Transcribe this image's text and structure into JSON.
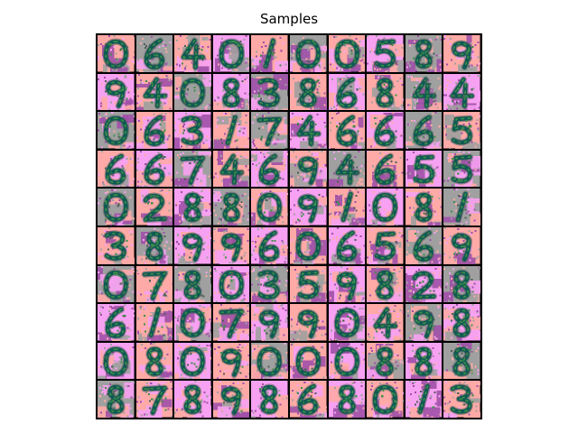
{
  "title": "Samples",
  "grid": {
    "rows": 10,
    "cols": 10
  },
  "palette": {
    "pink": "#ffaaa6",
    "gray": "#a0a0a0",
    "magenta": "#f7a1f2",
    "purple": "#a050a8",
    "ink": "#0e5a52",
    "inkLight": "#3f8f4a",
    "inkGray": "#4f5f58",
    "border": "#000000"
  },
  "samples": [
    {
      "digit": "0",
      "bg": "pink"
    },
    {
      "digit": "6",
      "bg": "gray"
    },
    {
      "digit": "4",
      "bg": "pink"
    },
    {
      "digit": "0",
      "bg": "magenta"
    },
    {
      "digit": "1",
      "bg": "pink"
    },
    {
      "digit": "0",
      "bg": "gray"
    },
    {
      "digit": "0",
      "bg": "pink"
    },
    {
      "digit": "5",
      "bg": "magenta"
    },
    {
      "digit": "8",
      "bg": "gray"
    },
    {
      "digit": "9",
      "bg": "pink"
    },
    {
      "digit": "9",
      "bg": "magenta"
    },
    {
      "digit": "4",
      "bg": "pink"
    },
    {
      "digit": "0",
      "bg": "gray"
    },
    {
      "digit": "8",
      "bg": "magenta"
    },
    {
      "digit": "3",
      "bg": "gray"
    },
    {
      "digit": "8",
      "bg": "pink"
    },
    {
      "digit": "6",
      "bg": "magenta"
    },
    {
      "digit": "8",
      "bg": "pink"
    },
    {
      "digit": "4",
      "bg": "gray"
    },
    {
      "digit": "4",
      "bg": "magenta"
    },
    {
      "digit": "0",
      "bg": "gray"
    },
    {
      "digit": "6",
      "bg": "pink"
    },
    {
      "digit": "3",
      "bg": "magenta"
    },
    {
      "digit": "1",
      "bg": "pink"
    },
    {
      "digit": "7",
      "bg": "gray"
    },
    {
      "digit": "4",
      "bg": "magenta"
    },
    {
      "digit": "6",
      "bg": "pink"
    },
    {
      "digit": "6",
      "bg": "magenta"
    },
    {
      "digit": "6",
      "bg": "gray"
    },
    {
      "digit": "5",
      "bg": "pink"
    },
    {
      "digit": "6",
      "bg": "pink"
    },
    {
      "digit": "6",
      "bg": "magenta"
    },
    {
      "digit": "7",
      "bg": "gray"
    },
    {
      "digit": "4",
      "bg": "pink"
    },
    {
      "digit": "6",
      "bg": "magenta"
    },
    {
      "digit": "9",
      "bg": "pink"
    },
    {
      "digit": "4",
      "bg": "gray"
    },
    {
      "digit": "6",
      "bg": "pink"
    },
    {
      "digit": "5",
      "bg": "magenta"
    },
    {
      "digit": "5",
      "bg": "gray"
    },
    {
      "digit": "0",
      "bg": "gray"
    },
    {
      "digit": "2",
      "bg": "pink"
    },
    {
      "digit": "8",
      "bg": "magenta"
    },
    {
      "digit": "8",
      "bg": "gray"
    },
    {
      "digit": "0",
      "bg": "pink"
    },
    {
      "digit": "9",
      "bg": "magenta"
    },
    {
      "digit": "1",
      "bg": "pink"
    },
    {
      "digit": "0",
      "bg": "magenta"
    },
    {
      "digit": "8",
      "bg": "pink"
    },
    {
      "digit": "1",
      "bg": "gray"
    },
    {
      "digit": "3",
      "bg": "pink"
    },
    {
      "digit": "8",
      "bg": "gray"
    },
    {
      "digit": "9",
      "bg": "magenta"
    },
    {
      "digit": "9",
      "bg": "pink"
    },
    {
      "digit": "6",
      "bg": "magenta"
    },
    {
      "digit": "0",
      "bg": "pink"
    },
    {
      "digit": "6",
      "bg": "magenta"
    },
    {
      "digit": "5",
      "bg": "pink"
    },
    {
      "digit": "6",
      "bg": "gray"
    },
    {
      "digit": "9",
      "bg": "pink"
    },
    {
      "digit": "0",
      "bg": "gray"
    },
    {
      "digit": "7",
      "bg": "pink"
    },
    {
      "digit": "8",
      "bg": "gray"
    },
    {
      "digit": "0",
      "bg": "magenta"
    },
    {
      "digit": "3",
      "bg": "gray"
    },
    {
      "digit": "5",
      "bg": "pink"
    },
    {
      "digit": "9",
      "bg": "magenta"
    },
    {
      "digit": "8",
      "bg": "pink"
    },
    {
      "digit": "2",
      "bg": "magenta"
    },
    {
      "digit": "8",
      "bg": "gray"
    },
    {
      "digit": "6",
      "bg": "magenta"
    },
    {
      "digit": "1",
      "bg": "pink"
    },
    {
      "digit": "0",
      "bg": "magenta"
    },
    {
      "digit": "7",
      "bg": "pink"
    },
    {
      "digit": "9",
      "bg": "magenta"
    },
    {
      "digit": "9",
      "bg": "pink"
    },
    {
      "digit": "0",
      "bg": "magenta"
    },
    {
      "digit": "4",
      "bg": "pink"
    },
    {
      "digit": "9",
      "bg": "gray"
    },
    {
      "digit": "8",
      "bg": "magenta"
    },
    {
      "digit": "0",
      "bg": "magenta"
    },
    {
      "digit": "8",
      "bg": "pink"
    },
    {
      "digit": "0",
      "bg": "magenta"
    },
    {
      "digit": "9",
      "bg": "pink"
    },
    {
      "digit": "0",
      "bg": "gray"
    },
    {
      "digit": "0",
      "bg": "pink"
    },
    {
      "digit": "0",
      "bg": "magenta"
    },
    {
      "digit": "8",
      "bg": "pink"
    },
    {
      "digit": "8",
      "bg": "magenta"
    },
    {
      "digit": "8",
      "bg": "gray"
    },
    {
      "digit": "8",
      "bg": "gray"
    },
    {
      "digit": "7",
      "bg": "pink"
    },
    {
      "digit": "8",
      "bg": "magenta"
    },
    {
      "digit": "9",
      "bg": "pink"
    },
    {
      "digit": "8",
      "bg": "magenta"
    },
    {
      "digit": "6",
      "bg": "pink"
    },
    {
      "digit": "8",
      "bg": "magenta"
    },
    {
      "digit": "0",
      "bg": "pink"
    },
    {
      "digit": "1",
      "bg": "magenta"
    },
    {
      "digit": "3",
      "bg": "pink"
    }
  ]
}
